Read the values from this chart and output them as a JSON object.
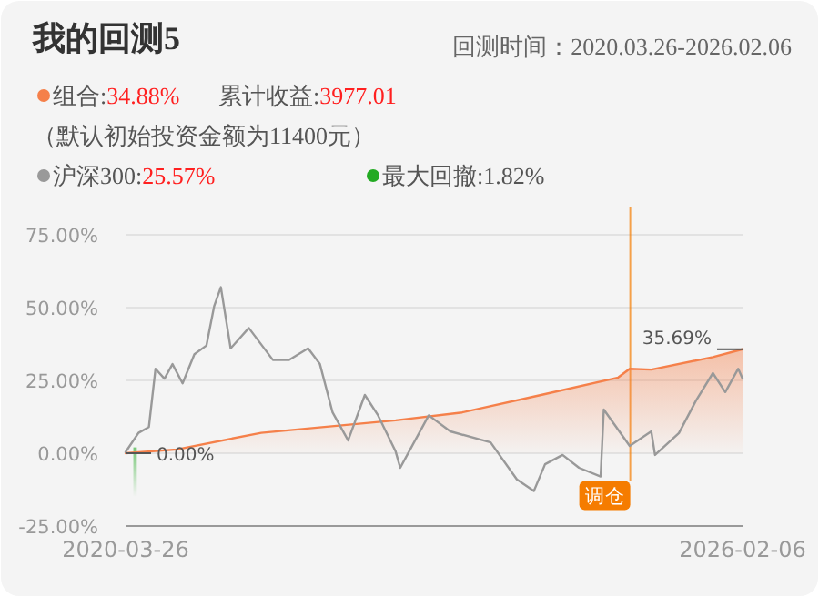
{
  "chart_data": {
    "type": "line",
    "title": "我的回测5",
    "subtitle": "回测时间：2020.03.26-2026.02.06",
    "annotations": [
      "累计收益:3977.01",
      "（默认初始投资金额为11400元）",
      {
        "text": "0.00%",
        "x": "2020-03-26",
        "y": 0
      },
      {
        "text": "35.69%",
        "x": "2026-02-06",
        "y": 35.69
      }
    ],
    "series": [
      {
        "name": "组合:34.88%",
        "type": "area",
        "color": "#f5804a",
        "x": [
          "2020-03-26",
          "2020-09-20",
          "2021-07-10",
          "2022-01-20",
          "2022-10-20",
          "2023-06-08",
          "2024-03-08",
          "2024-12-01",
          "2025-01-10",
          "2025-03-26",
          "2025-10-26",
          "2026-02-06"
        ],
        "values": [
          0,
          1.3,
          7,
          8.8,
          11.3,
          14,
          20,
          26,
          29,
          28.7,
          33,
          35.7
        ]
      },
      {
        "name": "沪深300:25.57%",
        "type": "line",
        "color": "#999999",
        "x": [
          "2020-03-26",
          "2020-05-10",
          "2020-06-15",
          "2020-07-08",
          "2020-08-08",
          "2020-09-05",
          "2020-10-10",
          "2020-11-20",
          "2021-01-01",
          "2021-01-28",
          "2021-02-20",
          "2021-03-26",
          "2021-05-28",
          "2021-08-20",
          "2021-10-15",
          "2021-12-20",
          "2022-01-30",
          "2022-03-15",
          "2022-05-08",
          "2022-07-05",
          "2022-08-20",
          "2022-10-20",
          "2022-11-05",
          "2023-02-12",
          "2023-04-28",
          "2023-09-15",
          "2023-12-15",
          "2024-02-12",
          "2024-03-22",
          "2024-05-22",
          "2024-07-18",
          "2024-10-01",
          "2024-10-12",
          "2025-01-10",
          "2025-03-26",
          "2025-04-08",
          "2025-06-30",
          "2025-08-28",
          "2025-10-26",
          "2025-12-08",
          "2026-01-22",
          "2026-02-06"
        ],
        "values": [
          0.4,
          7,
          9,
          29,
          25.6,
          30.6,
          24,
          34,
          37,
          50.6,
          57,
          36,
          43,
          32,
          32,
          36,
          30.6,
          14,
          4.4,
          20,
          13,
          0.6,
          -5,
          13,
          7.5,
          3.7,
          -9,
          -13,
          -3.8,
          -0.6,
          -5,
          -8,
          15,
          2.5,
          7.5,
          -0.6,
          6.9,
          18,
          27.5,
          21,
          29,
          25.6
        ]
      }
    ],
    "ref_lines": [
      {
        "axis": "x",
        "value": "2025-01-12",
        "label": "调仓",
        "color": "#f57c00"
      }
    ],
    "bands": [
      {
        "axis": "x",
        "from": "2020-04-22",
        "to": "2020-05-04",
        "label": "最大回撤:1.82%",
        "color": "#22aa22"
      }
    ],
    "xlim": [
      "2020-03-26",
      "2026-02-06"
    ],
    "xticks": [
      {
        "value": "2020-03-26",
        "label": "2020-03-26"
      },
      {
        "value": "2026-02-06",
        "label": "2026-02-06"
      }
    ],
    "ylim": [
      -25,
      75
    ],
    "yticks": [
      {
        "value": -25,
        "label": "-25.00%"
      },
      {
        "value": 0,
        "label": "0.00%"
      },
      {
        "value": 25,
        "label": "25.00%"
      },
      {
        "value": 50,
        "label": "50.00%"
      },
      {
        "value": 75,
        "label": "75.00%"
      }
    ],
    "grid": "y",
    "legend": "top"
  }
}
